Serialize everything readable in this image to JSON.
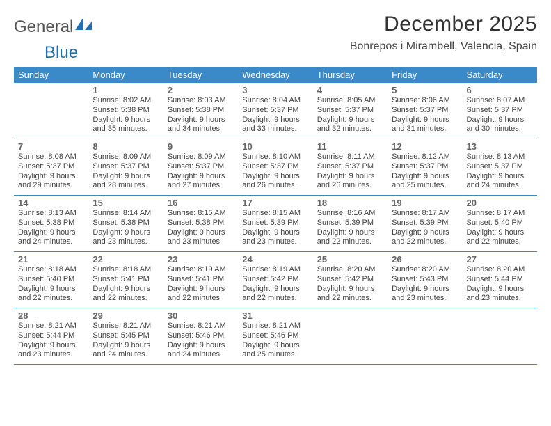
{
  "logo": {
    "word1": "General",
    "word2": "Blue"
  },
  "colors": {
    "header_bg": "#3a89c9",
    "header_text": "#ffffff",
    "border": "#3a89c9",
    "text": "#444444",
    "daynum": "#666666",
    "logo_blue": "#1f6fb2"
  },
  "title": "December 2025",
  "location": "Bonrepos i Mirambell, Valencia, Spain",
  "daysOfWeek": [
    "Sunday",
    "Monday",
    "Tuesday",
    "Wednesday",
    "Thursday",
    "Friday",
    "Saturday"
  ],
  "weeks": [
    [
      {
        "n": "",
        "sunrise": "",
        "sunset": "",
        "daylight": ""
      },
      {
        "n": "1",
        "sunrise": "Sunrise: 8:02 AM",
        "sunset": "Sunset: 5:38 PM",
        "daylight": "Daylight: 9 hours and 35 minutes."
      },
      {
        "n": "2",
        "sunrise": "Sunrise: 8:03 AM",
        "sunset": "Sunset: 5:38 PM",
        "daylight": "Daylight: 9 hours and 34 minutes."
      },
      {
        "n": "3",
        "sunrise": "Sunrise: 8:04 AM",
        "sunset": "Sunset: 5:37 PM",
        "daylight": "Daylight: 9 hours and 33 minutes."
      },
      {
        "n": "4",
        "sunrise": "Sunrise: 8:05 AM",
        "sunset": "Sunset: 5:37 PM",
        "daylight": "Daylight: 9 hours and 32 minutes."
      },
      {
        "n": "5",
        "sunrise": "Sunrise: 8:06 AM",
        "sunset": "Sunset: 5:37 PM",
        "daylight": "Daylight: 9 hours and 31 minutes."
      },
      {
        "n": "6",
        "sunrise": "Sunrise: 8:07 AM",
        "sunset": "Sunset: 5:37 PM",
        "daylight": "Daylight: 9 hours and 30 minutes."
      }
    ],
    [
      {
        "n": "7",
        "sunrise": "Sunrise: 8:08 AM",
        "sunset": "Sunset: 5:37 PM",
        "daylight": "Daylight: 9 hours and 29 minutes."
      },
      {
        "n": "8",
        "sunrise": "Sunrise: 8:09 AM",
        "sunset": "Sunset: 5:37 PM",
        "daylight": "Daylight: 9 hours and 28 minutes."
      },
      {
        "n": "9",
        "sunrise": "Sunrise: 8:09 AM",
        "sunset": "Sunset: 5:37 PM",
        "daylight": "Daylight: 9 hours and 27 minutes."
      },
      {
        "n": "10",
        "sunrise": "Sunrise: 8:10 AM",
        "sunset": "Sunset: 5:37 PM",
        "daylight": "Daylight: 9 hours and 26 minutes."
      },
      {
        "n": "11",
        "sunrise": "Sunrise: 8:11 AM",
        "sunset": "Sunset: 5:37 PM",
        "daylight": "Daylight: 9 hours and 26 minutes."
      },
      {
        "n": "12",
        "sunrise": "Sunrise: 8:12 AM",
        "sunset": "Sunset: 5:37 PM",
        "daylight": "Daylight: 9 hours and 25 minutes."
      },
      {
        "n": "13",
        "sunrise": "Sunrise: 8:13 AM",
        "sunset": "Sunset: 5:37 PM",
        "daylight": "Daylight: 9 hours and 24 minutes."
      }
    ],
    [
      {
        "n": "14",
        "sunrise": "Sunrise: 8:13 AM",
        "sunset": "Sunset: 5:38 PM",
        "daylight": "Daylight: 9 hours and 24 minutes."
      },
      {
        "n": "15",
        "sunrise": "Sunrise: 8:14 AM",
        "sunset": "Sunset: 5:38 PM",
        "daylight": "Daylight: 9 hours and 23 minutes."
      },
      {
        "n": "16",
        "sunrise": "Sunrise: 8:15 AM",
        "sunset": "Sunset: 5:38 PM",
        "daylight": "Daylight: 9 hours and 23 minutes."
      },
      {
        "n": "17",
        "sunrise": "Sunrise: 8:15 AM",
        "sunset": "Sunset: 5:39 PM",
        "daylight": "Daylight: 9 hours and 23 minutes."
      },
      {
        "n": "18",
        "sunrise": "Sunrise: 8:16 AM",
        "sunset": "Sunset: 5:39 PM",
        "daylight": "Daylight: 9 hours and 22 minutes."
      },
      {
        "n": "19",
        "sunrise": "Sunrise: 8:17 AM",
        "sunset": "Sunset: 5:39 PM",
        "daylight": "Daylight: 9 hours and 22 minutes."
      },
      {
        "n": "20",
        "sunrise": "Sunrise: 8:17 AM",
        "sunset": "Sunset: 5:40 PM",
        "daylight": "Daylight: 9 hours and 22 minutes."
      }
    ],
    [
      {
        "n": "21",
        "sunrise": "Sunrise: 8:18 AM",
        "sunset": "Sunset: 5:40 PM",
        "daylight": "Daylight: 9 hours and 22 minutes."
      },
      {
        "n": "22",
        "sunrise": "Sunrise: 8:18 AM",
        "sunset": "Sunset: 5:41 PM",
        "daylight": "Daylight: 9 hours and 22 minutes."
      },
      {
        "n": "23",
        "sunrise": "Sunrise: 8:19 AM",
        "sunset": "Sunset: 5:41 PM",
        "daylight": "Daylight: 9 hours and 22 minutes."
      },
      {
        "n": "24",
        "sunrise": "Sunrise: 8:19 AM",
        "sunset": "Sunset: 5:42 PM",
        "daylight": "Daylight: 9 hours and 22 minutes."
      },
      {
        "n": "25",
        "sunrise": "Sunrise: 8:20 AM",
        "sunset": "Sunset: 5:42 PM",
        "daylight": "Daylight: 9 hours and 22 minutes."
      },
      {
        "n": "26",
        "sunrise": "Sunrise: 8:20 AM",
        "sunset": "Sunset: 5:43 PM",
        "daylight": "Daylight: 9 hours and 23 minutes."
      },
      {
        "n": "27",
        "sunrise": "Sunrise: 8:20 AM",
        "sunset": "Sunset: 5:44 PM",
        "daylight": "Daylight: 9 hours and 23 minutes."
      }
    ],
    [
      {
        "n": "28",
        "sunrise": "Sunrise: 8:21 AM",
        "sunset": "Sunset: 5:44 PM",
        "daylight": "Daylight: 9 hours and 23 minutes."
      },
      {
        "n": "29",
        "sunrise": "Sunrise: 8:21 AM",
        "sunset": "Sunset: 5:45 PM",
        "daylight": "Daylight: 9 hours and 24 minutes."
      },
      {
        "n": "30",
        "sunrise": "Sunrise: 8:21 AM",
        "sunset": "Sunset: 5:46 PM",
        "daylight": "Daylight: 9 hours and 24 minutes."
      },
      {
        "n": "31",
        "sunrise": "Sunrise: 8:21 AM",
        "sunset": "Sunset: 5:46 PM",
        "daylight": "Daylight: 9 hours and 25 minutes."
      },
      {
        "n": "",
        "sunrise": "",
        "sunset": "",
        "daylight": ""
      },
      {
        "n": "",
        "sunrise": "",
        "sunset": "",
        "daylight": ""
      },
      {
        "n": "",
        "sunrise": "",
        "sunset": "",
        "daylight": ""
      }
    ]
  ]
}
